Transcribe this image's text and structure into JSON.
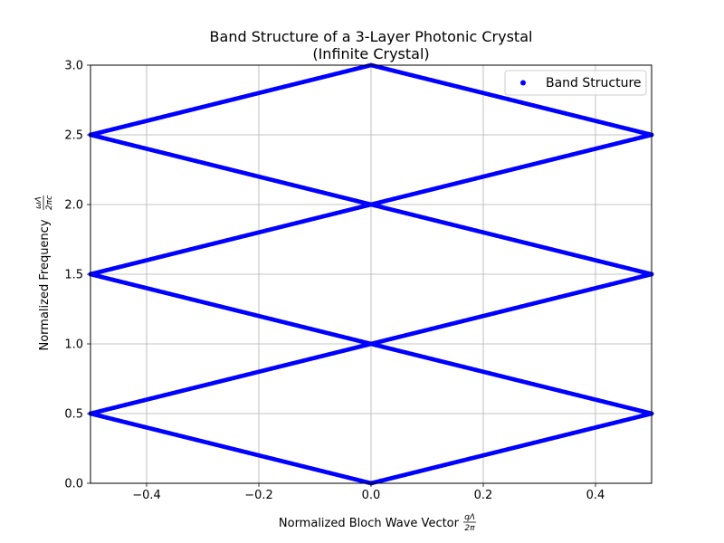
{
  "chart_data": {
    "type": "scatter",
    "title": "Band Structure of a 3-Layer Photonic Crystal",
    "subtitle": "(Infinite Crystal)",
    "xlabel": "Normalized Bloch Wave Vector",
    "xlabel_math": {
      "num": "qΛ",
      "den": "2π"
    },
    "ylabel": "Normalized Frequency",
    "ylabel_math": {
      "num": "ωΛ",
      "den": "2πc"
    },
    "xlim": [
      -0.5,
      0.5
    ],
    "ylim": [
      0.0,
      3.0
    ],
    "xticks": [
      -0.4,
      -0.2,
      0.0,
      0.2,
      0.4
    ],
    "xtick_labels": [
      "−0.4",
      "−0.2",
      "0.0",
      "0.2",
      "0.4"
    ],
    "yticks": [
      0.0,
      0.5,
      1.0,
      1.5,
      2.0,
      2.5,
      3.0
    ],
    "ytick_labels": [
      "0.0",
      "0.5",
      "1.0",
      "1.5",
      "2.0",
      "2.5",
      "3.0"
    ],
    "grid": true,
    "legend": {
      "placement": "top-right",
      "entries": [
        "Band Structure"
      ]
    },
    "series": [
      {
        "name": "Band Structure",
        "color": "#0000ff",
        "bands": [
          [
            [
              -0.5,
              0.5
            ],
            [
              0.0,
              0.0
            ],
            [
              0.5,
              0.5
            ]
          ],
          [
            [
              -0.5,
              0.5
            ],
            [
              0.0,
              1.0
            ],
            [
              0.5,
              0.5
            ]
          ],
          [
            [
              -0.5,
              1.5
            ],
            [
              0.0,
              1.0
            ],
            [
              0.5,
              1.5
            ]
          ],
          [
            [
              -0.5,
              1.5
            ],
            [
              0.0,
              2.0
            ],
            [
              0.5,
              1.5
            ]
          ],
          [
            [
              -0.5,
              2.5
            ],
            [
              0.0,
              2.0
            ],
            [
              0.5,
              2.5
            ]
          ],
          [
            [
              -0.5,
              2.5
            ],
            [
              0.0,
              3.0
            ],
            [
              0.5,
              2.5
            ]
          ]
        ]
      }
    ]
  }
}
